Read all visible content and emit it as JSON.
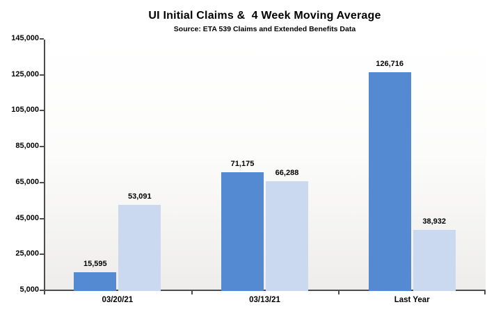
{
  "chart_data": {
    "type": "bar",
    "title": "UI Initial Claims &  4 Week Moving Average",
    "subtitle": "Source: ETA 539 Claims and Extended Benefits Data",
    "categories": [
      "03/20/21",
      "03/13/21",
      "Last Year"
    ],
    "series": [
      {
        "name": "UI Initial Claims",
        "color": "#538ad2",
        "values": [
          15595,
          71175,
          126716
        ],
        "data_labels": [
          "15,595",
          "71,175",
          "126,716"
        ]
      },
      {
        "name": "4 Week Moving Average",
        "color": "#cad9f0",
        "values": [
          53091,
          66288,
          38932
        ],
        "data_labels": [
          "53,091",
          "66,288",
          "38,932"
        ]
      }
    ],
    "y_axis": {
      "min": 5000,
      "max": 145000,
      "step": 20000,
      "tick_labels": [
        "5,000",
        "25,000",
        "45,000",
        "65,000",
        "85,000",
        "105,000",
        "125,000",
        "145,000"
      ]
    },
    "x_axis": {
      "tick_count": 4
    },
    "grid": false,
    "legend_position": "none",
    "axis_color": "#4d4d4d"
  }
}
